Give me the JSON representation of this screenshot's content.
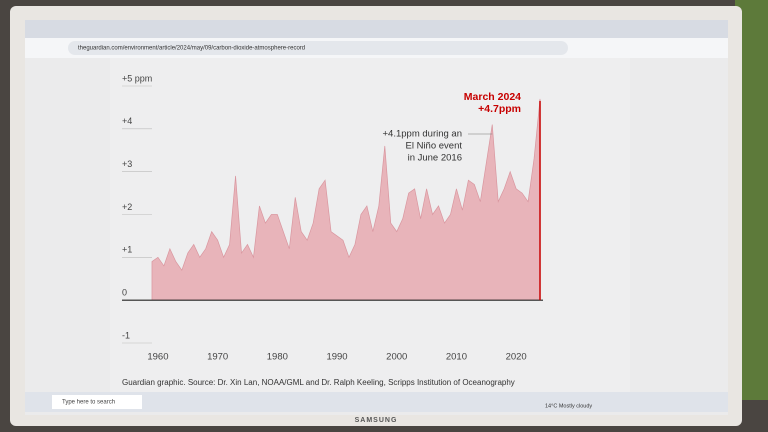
{
  "screen": {
    "url": "theguardian.com/environment/article/2024/may/09/carbon-dioxide-atmosphere-record",
    "search_placeholder": "Type here to search",
    "weather": "14°C Mostly cloudy",
    "brand": "SAMSUNG"
  },
  "chart_data": {
    "type": "area",
    "x": [
      1959,
      1960,
      1961,
      1962,
      1963,
      1964,
      1965,
      1966,
      1967,
      1968,
      1969,
      1970,
      1971,
      1972,
      1973,
      1974,
      1975,
      1976,
      1977,
      1978,
      1979,
      1980,
      1981,
      1982,
      1983,
      1984,
      1985,
      1986,
      1987,
      1988,
      1989,
      1990,
      1991,
      1992,
      1993,
      1994,
      1995,
      1996,
      1997,
      1998,
      1999,
      2000,
      2001,
      2002,
      2003,
      2004,
      2005,
      2006,
      2007,
      2008,
      2009,
      2010,
      2011,
      2012,
      2013,
      2014,
      2015,
      2016,
      2017,
      2018,
      2019,
      2020,
      2021,
      2022,
      2023,
      2024
    ],
    "values": [
      0.9,
      1.0,
      0.8,
      1.2,
      0.9,
      0.7,
      1.1,
      1.3,
      1.0,
      1.2,
      1.6,
      1.4,
      1.0,
      1.3,
      2.9,
      1.1,
      1.3,
      1.0,
      2.2,
      1.8,
      2.0,
      2.0,
      1.6,
      1.2,
      2.4,
      1.6,
      1.4,
      1.8,
      2.6,
      2.8,
      1.6,
      1.5,
      1.4,
      1.0,
      1.3,
      2.0,
      2.2,
      1.6,
      2.2,
      3.6,
      1.8,
      1.6,
      1.9,
      2.5,
      2.6,
      1.9,
      2.6,
      2.0,
      2.2,
      1.8,
      2.0,
      2.6,
      2.1,
      2.8,
      2.7,
      2.3,
      3.2,
      4.1,
      2.3,
      2.6,
      3.0,
      2.6,
      2.5,
      2.3,
      3.3,
      4.7
    ],
    "color": "#e8b4ba",
    "xlim": [
      1958,
      2024.5
    ],
    "ylim": [
      -1,
      5
    ],
    "xticks": [
      1960,
      1970,
      1980,
      1990,
      2000,
      2010,
      2020
    ],
    "yticks": [
      {
        "value": 5,
        "label": "+5 ppm"
      },
      {
        "value": 4,
        "label": "+4"
      },
      {
        "value": 3,
        "label": "+3"
      },
      {
        "value": 2,
        "label": "+2"
      },
      {
        "value": 1,
        "label": "+1"
      },
      0,
      {
        "value": -1,
        "label": "-1"
      }
    ],
    "annotations": [
      {
        "lines": [
          "+4.1ppm during an",
          "El Niño event",
          "in June 2016"
        ]
      },
      {
        "lines": [
          "March 2024",
          "+4.7ppm"
        ]
      }
    ],
    "source": "Guardian graphic. Source: Dr. Xin Lan, NOAA/GML and Dr. Ralph Keeling, Scripps Institution of Oceanography"
  }
}
